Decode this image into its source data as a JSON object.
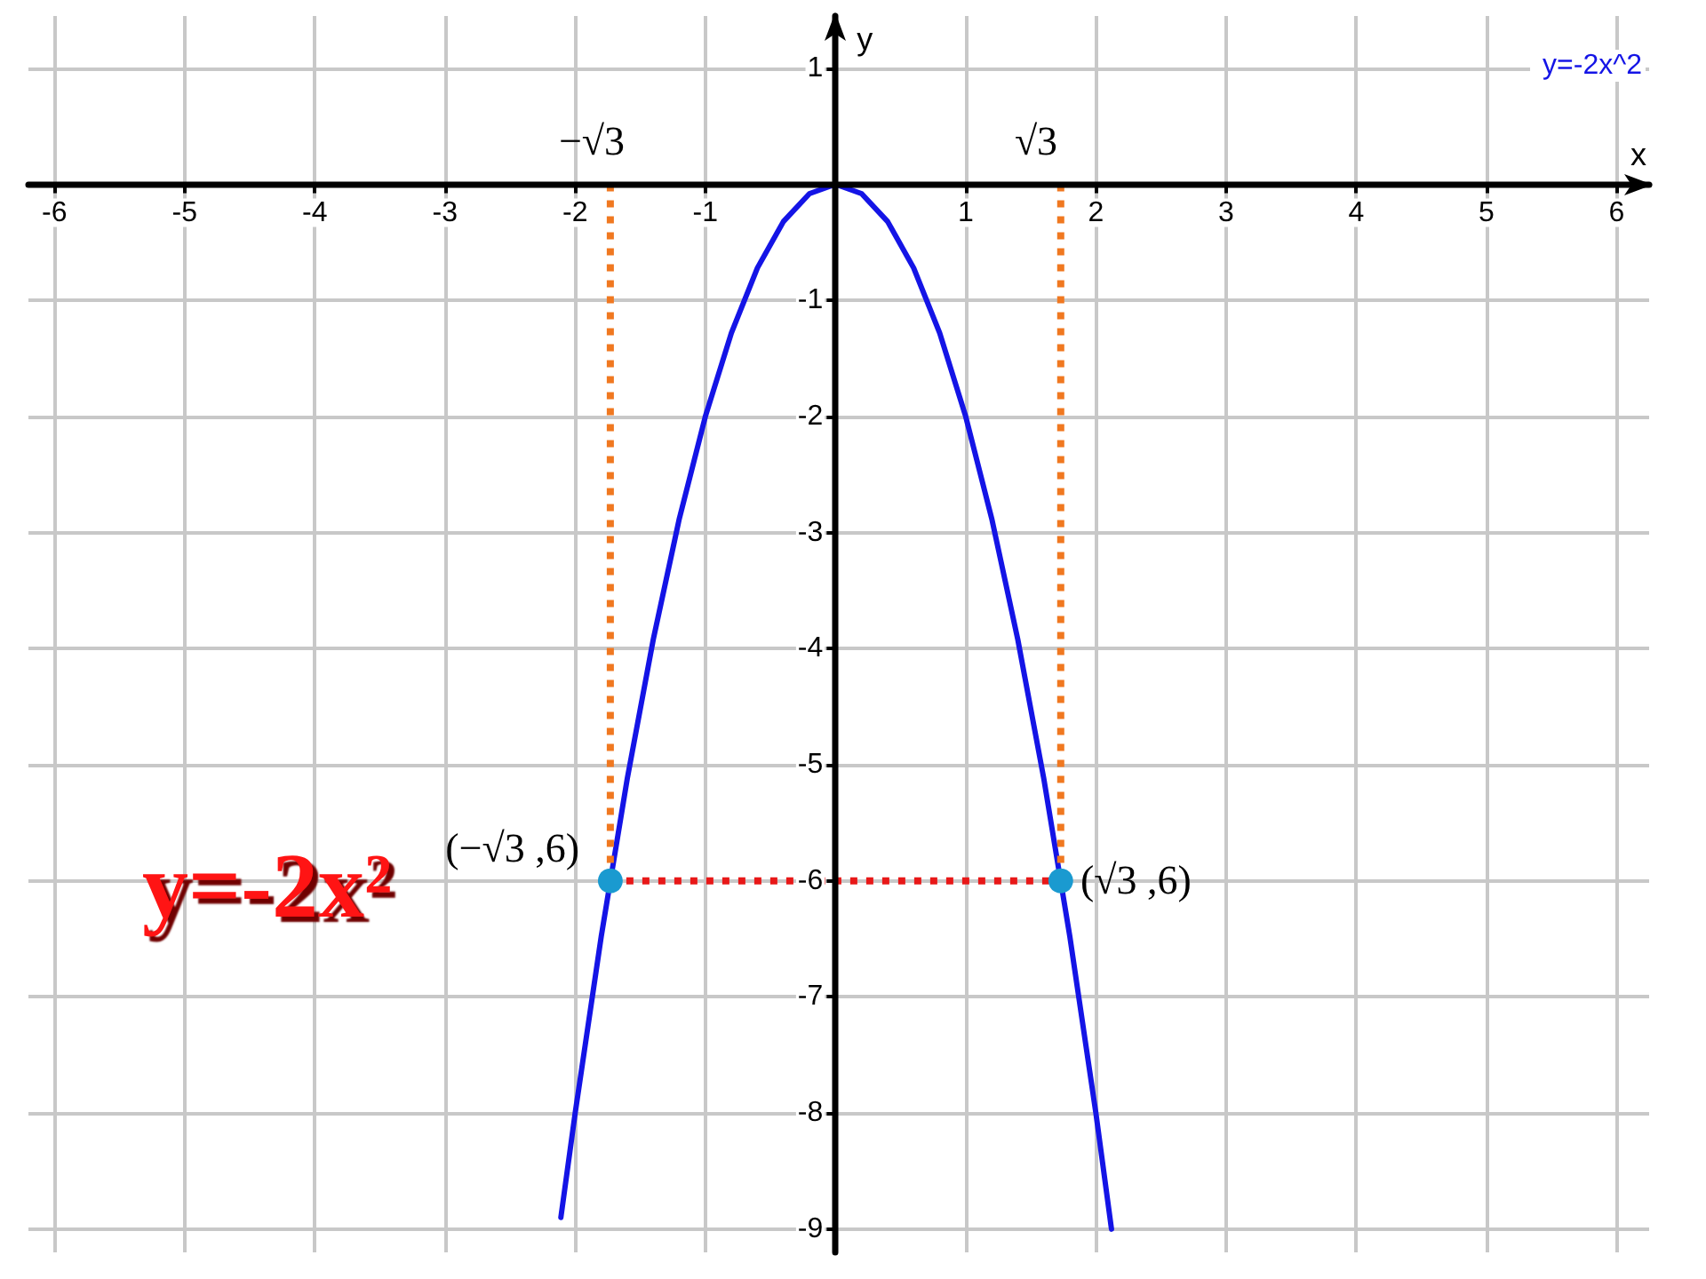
{
  "chart_data": {
    "type": "line",
    "xlabel": "x",
    "ylabel": "y",
    "xlim": [
      -6.2,
      6.25
    ],
    "ylim": [
      -9.2,
      1.45
    ],
    "xticks": [
      -6,
      -5,
      -4,
      -3,
      -2,
      -1,
      1,
      2,
      3,
      4,
      5,
      6
    ],
    "yticks": [
      -9,
      -8,
      -7,
      -6,
      -5,
      -4,
      -3,
      -2,
      -1,
      1
    ],
    "grid": true,
    "legend": "top right",
    "series": [
      {
        "name": "y=-2x^2",
        "color": "#1414e6",
        "marker": "none",
        "line_style": "solid",
        "x": [
          -2.11,
          -2,
          -1.8,
          -1.6,
          -1.4,
          -1.2,
          -1,
          -0.8,
          -0.6,
          -0.4,
          -0.2,
          0,
          0.2,
          0.4,
          0.6,
          0.8,
          1,
          1.2,
          1.4,
          1.6,
          1.8,
          2,
          2.12
        ],
        "values": [
          -8.9,
          -8,
          -6.48,
          -5.12,
          -3.92,
          -2.88,
          -2,
          -1.28,
          -0.72,
          -0.32,
          -0.08,
          0,
          -0.08,
          -0.32,
          -0.72,
          -1.28,
          -2,
          -2.88,
          -3.92,
          -5.12,
          -6.48,
          -8,
          -9
        ]
      },
      {
        "color": "#f07820",
        "marker": "none",
        "line_style": "dotted",
        "x": [
          -1.73,
          -1.73
        ],
        "values": [
          0,
          -6
        ]
      },
      {
        "color": "#f07820",
        "marker": "none",
        "line_style": "dotted",
        "x": [
          1.73,
          1.73
        ],
        "values": [
          0,
          -6
        ]
      },
      {
        "color": "#e81818",
        "marker": "none",
        "line_style": "dotted",
        "x": [
          -1.73,
          1.73
        ],
        "values": [
          -6,
          -6
        ]
      },
      {
        "type": "scatter",
        "color": "#1a9ad0",
        "marker": "circle",
        "x": [
          -1.73,
          1.73
        ],
        "values": [
          -6,
          -6
        ]
      }
    ],
    "annotations": [
      "−√3",
      "√3",
      "(−√3 ,6)",
      "(√3 ,6)",
      "y=-2x²"
    ]
  }
}
